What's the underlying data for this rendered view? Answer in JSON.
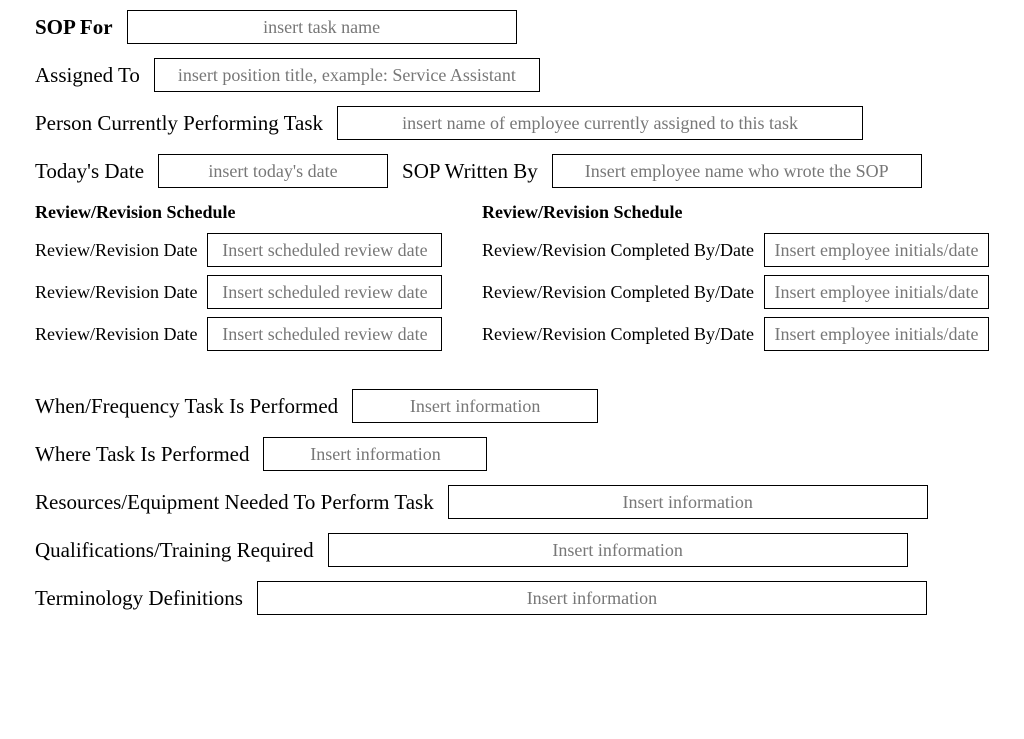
{
  "header": {
    "sop_for_label": "SOP For",
    "sop_for_placeholder": "insert task name",
    "assigned_to_label": "Assigned To",
    "assigned_to_placeholder": "insert position title, example: Service Assistant",
    "person_label": "Person Currently Performing Task",
    "person_placeholder": "insert name of employee currently assigned to this task",
    "today_label": "Today's Date",
    "today_placeholder": "insert today's date",
    "written_by_label": "SOP Written By",
    "written_by_placeholder": "Insert employee name who wrote the SOP"
  },
  "schedule": {
    "left_header": "Review/Revision Schedule",
    "right_header": "Review/Revision Schedule",
    "left_row_label": "Review/Revision Date",
    "left_placeholder": "Insert scheduled review date",
    "right_row_label": "Review/Revision Completed By/Date",
    "right_placeholder": "Insert employee initials/date"
  },
  "details": {
    "frequency_label": "When/Frequency Task Is Performed",
    "where_label": "Where Task Is Performed",
    "resources_label": "Resources/Equipment Needed To Perform Task",
    "qualifications_label": "Qualifications/Training Required",
    "terminology_label": "Terminology Definitions",
    "info_placeholder": "Insert information"
  }
}
